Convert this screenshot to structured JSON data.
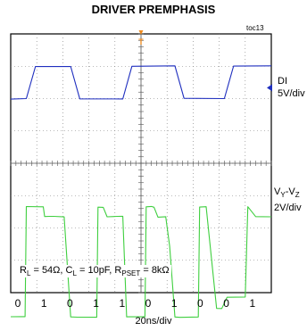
{
  "chart_data": {
    "type": "line",
    "title": "DRIVER PREMPHASIS",
    "figure_tag": "toc13",
    "trigger_marker": "T",
    "xlabel": "20ns/div",
    "bit_sequence": [
      "0",
      "1",
      "0",
      "1",
      "1",
      "0",
      "1",
      "0",
      "0",
      "1"
    ],
    "conditions": {
      "rl": "R",
      "rl_sub": "L",
      "rl_val": " = 54Ω, C",
      "cl_sub": "L",
      "cl_val": " = 10pF, R",
      "rp_sub": "PSET",
      "rp_val": " = 8kΩ"
    },
    "series": [
      {
        "name": "DI",
        "scale": "5V/div",
        "color": "#1f2fbf",
        "x_div": [
          0,
          0.6,
          0.95,
          2.3,
          2.65,
          4.3,
          4.65,
          6.3,
          6.65,
          8.2,
          8.55,
          10
        ],
        "y_div": [
          0,
          0,
          1,
          1,
          0,
          0,
          1,
          1,
          0,
          0,
          1,
          1
        ]
      },
      {
        "name": "VY-VZ",
        "name_main": "V",
        "name_sub1": "Y",
        "name_mid": "-V",
        "name_sub2": "Z",
        "scale": "2V/div",
        "color": "#3fcf3f",
        "x_div": [
          0,
          0.35,
          0.55,
          0.6,
          1.25,
          1.3,
          1.5,
          1.65,
          2.05,
          2.3,
          2.55,
          3.3,
          3.35,
          3.55,
          3.7,
          4.1,
          4.3,
          4.45,
          4.5,
          5.15,
          5.2,
          5.4,
          5.5,
          5.65,
          5.95,
          6.1,
          6.3,
          6.5,
          7.2,
          7.25,
          7.5,
          7.9,
          8.1,
          8.3,
          9.0,
          9.1,
          9.4,
          10
        ],
        "y_div": [
          -3.05,
          -3.05,
          -3.05,
          0.35,
          0.35,
          0.05,
          0.05,
          0.05,
          0.05,
          -3.05,
          -3.05,
          -3.05,
          0.35,
          0.35,
          0.05,
          0.05,
          0.05,
          -3.05,
          -3.05,
          -3.05,
          0.35,
          0.35,
          0.35,
          0.05,
          0.05,
          -0.85,
          -3.05,
          -3.05,
          -3.05,
          0.35,
          0.35,
          -2.8,
          -2.8,
          -2.45,
          -2.45,
          0.35,
          0.05,
          0.05
        ]
      }
    ],
    "grid": true,
    "x_divisions": 10,
    "y_divisions": 8
  }
}
